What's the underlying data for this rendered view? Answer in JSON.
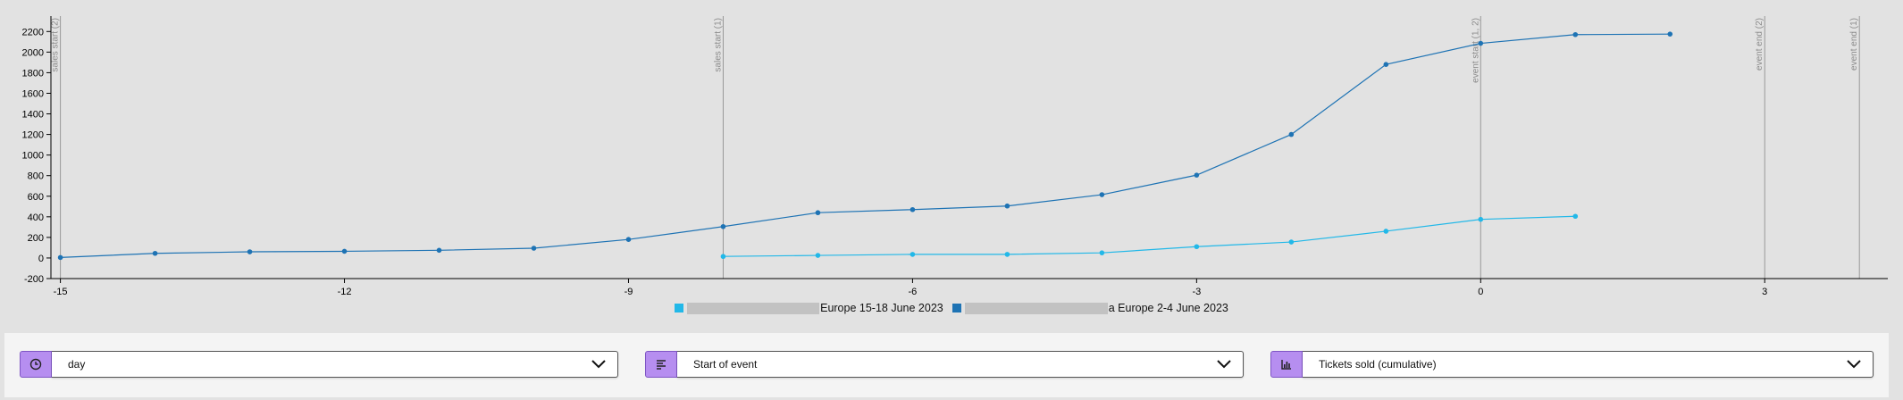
{
  "chart_data": {
    "type": "line",
    "x_ticks": [
      -15,
      -12,
      -9,
      -6,
      -3,
      0,
      3
    ],
    "y_ticks": [
      -200,
      0,
      200,
      400,
      600,
      800,
      1000,
      1200,
      1400,
      1600,
      1800,
      2000,
      2200
    ],
    "xlim": [
      -15.1,
      4.3
    ],
    "ylim": [
      -200,
      2350
    ],
    "grid": false,
    "legend_position": "bottom-center",
    "series": [
      {
        "name": "Europe 15-18 June 2023",
        "color": "#22b8e8",
        "x": [
          -8,
          -7,
          -6,
          -5,
          -4,
          -3,
          -2,
          -1,
          0,
          1
        ],
        "values": [
          15,
          25,
          35,
          35,
          50,
          110,
          155,
          260,
          375,
          405
        ]
      },
      {
        "name": "a Europe 2-4 June 2023",
        "color": "#1e73b4",
        "x": [
          -15,
          -14,
          -13,
          -12,
          -11,
          -10,
          -9,
          -8,
          -7,
          -6,
          -5,
          -4,
          -3,
          -2,
          -1,
          0,
          1,
          2
        ],
        "values": [
          5,
          45,
          60,
          65,
          75,
          95,
          180,
          305,
          440,
          470,
          505,
          615,
          805,
          1200,
          1880,
          2085,
          2170,
          2175
        ]
      }
    ],
    "markers": [
      {
        "x": -15,
        "label": "sales start (2)"
      },
      {
        "x": -8,
        "label": "sales start (1)"
      },
      {
        "x": 0,
        "label": "event start (1, 2)"
      },
      {
        "x": 3,
        "label": "event end (2)"
      },
      {
        "x": 4,
        "label": "event end (1)"
      }
    ]
  },
  "legend": [
    {
      "text": "Europe 15-18 June 2023",
      "color": "#22b8e8"
    },
    {
      "text": "a Europe 2-4 June 2023",
      "color": "#1e73b4"
    }
  ],
  "controls": [
    {
      "icon": "clock-icon",
      "value": "day"
    },
    {
      "icon": "align-left-icon",
      "value": "Start of event"
    },
    {
      "icon": "bar-chart-icon",
      "value": "Tickets sold (cumulative)"
    }
  ],
  "colors": {
    "accent": "#b68ef0",
    "background": "#e2e2e2"
  }
}
